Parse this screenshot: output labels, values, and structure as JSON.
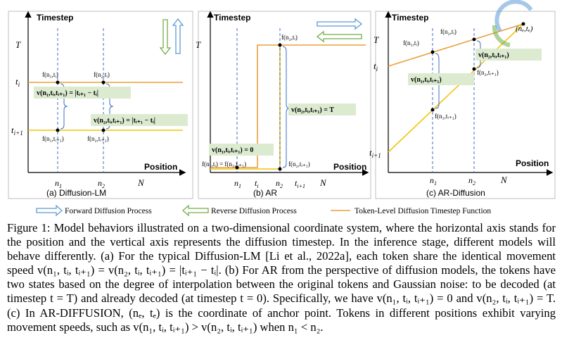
{
  "panels": [
    {
      "caption": "(a) Diffusion-LM",
      "y_axis": "Timestep",
      "x_axis": "Position",
      "y_ticks": [
        "T",
        "t_i",
        "t_{i+1}"
      ],
      "x_ticks": [
        "n_1",
        "n_2",
        "N"
      ],
      "point_labels": [
        "f(n₁,tᵢ)",
        "f(n₂,tᵢ)",
        "f(n₁,tᵢ₊₁)",
        "f(n₂,tᵢ₊₁)"
      ],
      "annotations": [
        "v(n₁,tᵢ,tᵢ₊₁) = |tᵢ₊₁ − tᵢ|",
        "v(n₂,tᵢ,tᵢ₊₁) = |tᵢ₊₁ − tᵢ|"
      ]
    },
    {
      "caption": "(b) AR",
      "y_axis": "Timestep",
      "x_axis": "Position",
      "y_ticks": [
        "T"
      ],
      "x_ticks": [
        "n₁",
        "tᵢ",
        "n₂",
        "tᵢ₊₁",
        "N"
      ],
      "point_labels": [
        "f(n₂,tᵢ)",
        "f(n₁,tᵢ) = f(n₁,tᵢ₊₁)",
        "f(n₂,tᵢ₊₁)"
      ],
      "annotations": [
        "v(n₁,tᵢ,tᵢ₊₁) = 0",
        "v(n₂,tᵢ,tᵢ₊₁) = T"
      ]
    },
    {
      "caption": "(c) AR-Diffusion",
      "y_axis": "Timestep",
      "x_axis": "Position",
      "y_ticks": [
        "T",
        "tᵢ",
        "tᵢ₊₁"
      ],
      "x_ticks": [
        "n₁",
        "n₂",
        "N"
      ],
      "point_labels": [
        "f(n₁,tᵢ)",
        "f(n₂,tᵢ)",
        "f(n₁,tᵢ₊₁)",
        "f(n₂,tᵢ₊₁)",
        "(nₑ,tₑ)"
      ],
      "annotations": [
        "v(n₁,tᵢ,tᵢ₊₁)",
        "v(n₂,tᵢ,tᵢ₊₁)"
      ]
    }
  ],
  "legend": {
    "forward": "Forward Diffusion Process",
    "reverse": "Reverse Diffusion Process",
    "function": "Token-Level Diffusion Timestep Function"
  },
  "colors": {
    "orange": "#e8a03c",
    "yellow": "#f2c40f",
    "blue": "#3d6fc4",
    "green_box": "#dcebd0",
    "arrow_blue": "#5b9bd5",
    "arrow_green": "#70ad47"
  },
  "caption_text": "Figure 1: Model behaviors illustrated on a two-dimensional coordinate system, where the horizontal axis stands for the position and the vertical axis represents the diffusion timestep. In the inference stage, different models will behave differently. (a) For the typical Diffusion-LM [Li et al., 2022a], each token share the identical movement speed v(n₁, tᵢ, tᵢ₊₁) = v(n₂, tᵢ, tᵢ₊₁) = |tᵢ₊₁ − tᵢ|. (b) For AR from the perspective of diffusion models, the tokens have two states based on the degree of interpolation between the original tokens and Gaussian noise: to be decoded (at timestep t = T) and already decoded (at timestep t = 0). Specifically, we have v(n₁, tᵢ, tᵢ₊₁) = 0 and v(n₂, tᵢ, tᵢ₊₁) = T. (c) In AR-DIFFUSION, (nₑ, tₑ) is the coordinate of anchor point. Tokens in different positions exhibit varying movement speeds, such as v(n₁, tᵢ, tᵢ₊₁) > v(n₂, tᵢ, tᵢ₊₁) when n₁ < n₂."
}
